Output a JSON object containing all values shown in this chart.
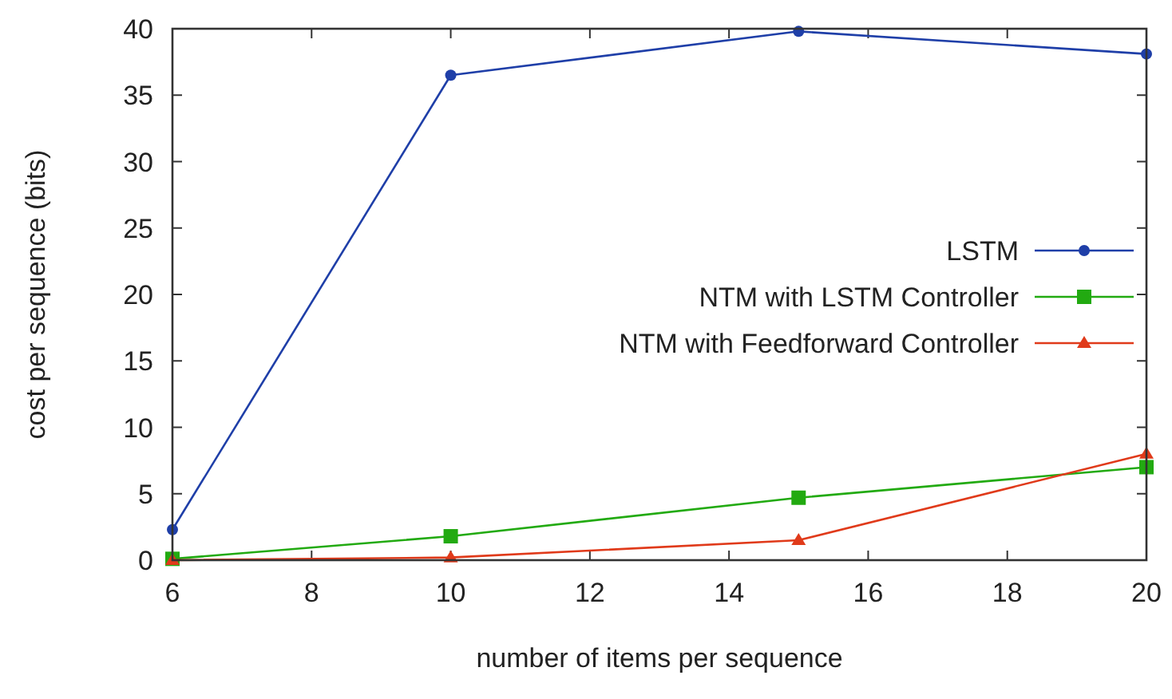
{
  "chart_data": {
    "type": "line",
    "xlabel": "number of items per sequence",
    "ylabel": "cost per sequence (bits)",
    "xlim": [
      6,
      20
    ],
    "xticks": [
      6,
      8,
      10,
      12,
      14,
      16,
      18,
      20
    ],
    "ylim": [
      0,
      40
    ],
    "yticks": [
      0,
      5,
      10,
      15,
      20,
      25,
      30,
      35,
      40
    ],
    "x": [
      6,
      10,
      15,
      20
    ],
    "legend": "right",
    "grid": false,
    "series": [
      {
        "name": "LSTM",
        "color": "#1f3fa8",
        "marker": "circle",
        "values": [
          2.3,
          36.5,
          39.8,
          38.1
        ]
      },
      {
        "name": "NTM with LSTM Controller",
        "color": "#22aa11",
        "marker": "square",
        "values": [
          0.1,
          1.8,
          4.7,
          7.0
        ]
      },
      {
        "name": "NTM with Feedforward Controller",
        "color": "#e03a1a",
        "marker": "triangle",
        "values": [
          0,
          0.2,
          1.5,
          8.0
        ]
      }
    ]
  }
}
